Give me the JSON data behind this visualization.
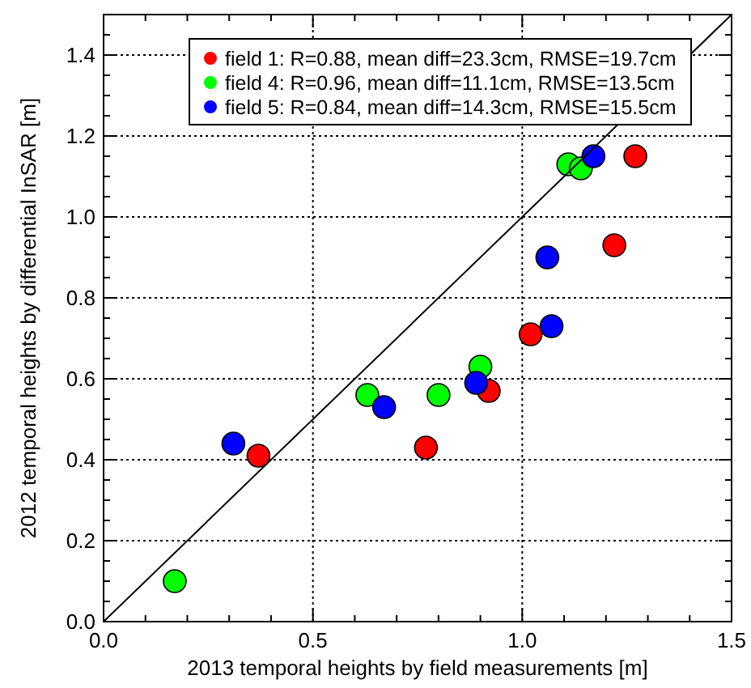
{
  "chart_data": {
    "type": "scatter",
    "xlabel": "2013 temporal heights by field measurements [m]",
    "ylabel": "2012 temporal heights by differential InSAR [m]",
    "xlim": [
      0,
      1.5
    ],
    "ylim": [
      0,
      1.5
    ],
    "xticks": [
      {
        "value": 0,
        "label": "0.0"
      },
      {
        "value": 0.1,
        "label": null
      },
      {
        "value": 0.2,
        "label": null
      },
      {
        "value": 0.3,
        "label": null
      },
      {
        "value": 0.4,
        "label": null
      },
      {
        "value": 0.5,
        "label": "0.5"
      },
      {
        "value": 0.6,
        "label": null
      },
      {
        "value": 0.7,
        "label": null
      },
      {
        "value": 0.8,
        "label": null
      },
      {
        "value": 0.9,
        "label": null
      },
      {
        "value": 1,
        "label": "1.0"
      },
      {
        "value": 1.1,
        "label": null
      },
      {
        "value": 1.2,
        "label": null
      },
      {
        "value": 1.3,
        "label": null
      },
      {
        "value": 1.4,
        "label": null
      },
      {
        "value": 1.5,
        "label": "1.5"
      }
    ],
    "yticks": [
      {
        "value": 0,
        "label": "0.0"
      },
      {
        "value": 0.05,
        "label": null
      },
      {
        "value": 0.1,
        "label": null
      },
      {
        "value": 0.15,
        "label": null
      },
      {
        "value": 0.2,
        "label": "0.2"
      },
      {
        "value": 0.25,
        "label": null
      },
      {
        "value": 0.3,
        "label": null
      },
      {
        "value": 0.35,
        "label": null
      },
      {
        "value": 0.4,
        "label": "0.4"
      },
      {
        "value": 0.45,
        "label": null
      },
      {
        "value": 0.5,
        "label": null
      },
      {
        "value": 0.55,
        "label": null
      },
      {
        "value": 0.6,
        "label": "0.6"
      },
      {
        "value": 0.65,
        "label": null
      },
      {
        "value": 0.7,
        "label": null
      },
      {
        "value": 0.75,
        "label": null
      },
      {
        "value": 0.8,
        "label": "0.8"
      },
      {
        "value": 0.85,
        "label": null
      },
      {
        "value": 0.9,
        "label": null
      },
      {
        "value": 0.95,
        "label": null
      },
      {
        "value": 1,
        "label": "1.0"
      },
      {
        "value": 1.05,
        "label": null
      },
      {
        "value": 1.1,
        "label": null
      },
      {
        "value": 1.15,
        "label": null
      },
      {
        "value": 1.2,
        "label": "1.2"
      },
      {
        "value": 1.25,
        "label": null
      },
      {
        "value": 1.3,
        "label": null
      },
      {
        "value": 1.35,
        "label": null
      },
      {
        "value": 1.4,
        "label": "1.4"
      },
      {
        "value": 1.45,
        "label": null
      },
      {
        "value": 1.5,
        "label": null
      }
    ],
    "grid": true,
    "legend": "top right",
    "marker": "circle",
    "series": [
      {
        "name": "field 1: R=0.88, mean diff=23.3cm, RMSE=19.7cm",
        "color": "#ff0000",
        "x": [
          0.37,
          0.77,
          0.92,
          1.02,
          1.22,
          1.27
        ],
        "values": [
          0.41,
          0.43,
          0.57,
          0.71,
          0.93,
          1.15
        ]
      },
      {
        "name": "field 4: R=0.96, mean diff=11.1cm, RMSE=13.5cm",
        "color": "#00ff00",
        "x": [
          0.17,
          0.63,
          0.8,
          0.9,
          1.11,
          1.14
        ],
        "values": [
          0.1,
          0.56,
          0.56,
          0.63,
          1.13,
          1.12
        ]
      },
      {
        "name": "field 5: R=0.84, mean diff=14.3cm, RMSE=15.5cm",
        "color": "#0000ff",
        "x": [
          0.31,
          0.67,
          0.89,
          1.06,
          1.07,
          1.17
        ],
        "values": [
          0.44,
          0.53,
          0.59,
          0.9,
          0.73,
          1.15
        ]
      },
      {
        "type": "line",
        "color": "#000000",
        "marker": "none",
        "x": [
          0,
          1.5
        ],
        "values": [
          0,
          1.5
        ]
      }
    ]
  }
}
